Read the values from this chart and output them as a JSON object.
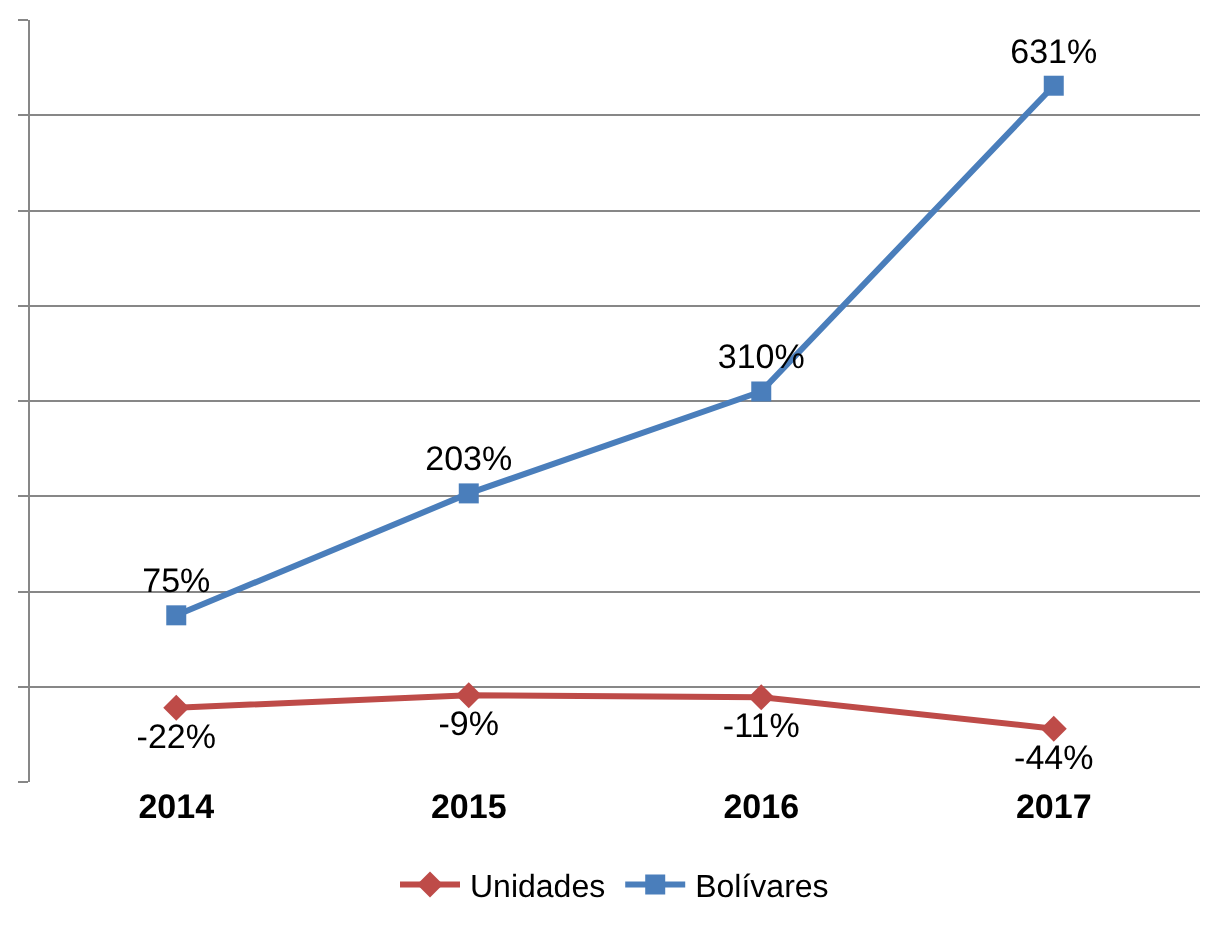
{
  "chart_data": {
    "type": "line",
    "categories": [
      "2014",
      "2015",
      "2016",
      "2017"
    ],
    "series": [
      {
        "name": "Unidades",
        "color": "#be4b48",
        "marker": "diamond",
        "values": [
          -22,
          -9,
          -11,
          -44
        ],
        "value_labels": [
          "-22%",
          "-9%",
          "-11%",
          "-44%"
        ]
      },
      {
        "name": "Bolívares",
        "color": "#4a7ebb",
        "marker": "square",
        "values": [
          75,
          203,
          310,
          631
        ],
        "value_labels": [
          "75%",
          "203%",
          "310%",
          "631%"
        ]
      }
    ],
    "ylim": [
      -100,
      700
    ],
    "yticks": [
      {
        "value": -100,
        "label": null
      },
      {
        "value": 0,
        "label": null
      },
      {
        "value": 100,
        "label": null
      },
      {
        "value": 200,
        "label": null
      },
      {
        "value": 300,
        "label": null
      },
      {
        "value": 400,
        "label": null
      },
      {
        "value": 500,
        "label": null
      },
      {
        "value": 600,
        "label": null
      },
      {
        "value": 700,
        "label": null
      }
    ],
    "tick_labels": "x",
    "grid": "y",
    "legend": "bottom"
  }
}
